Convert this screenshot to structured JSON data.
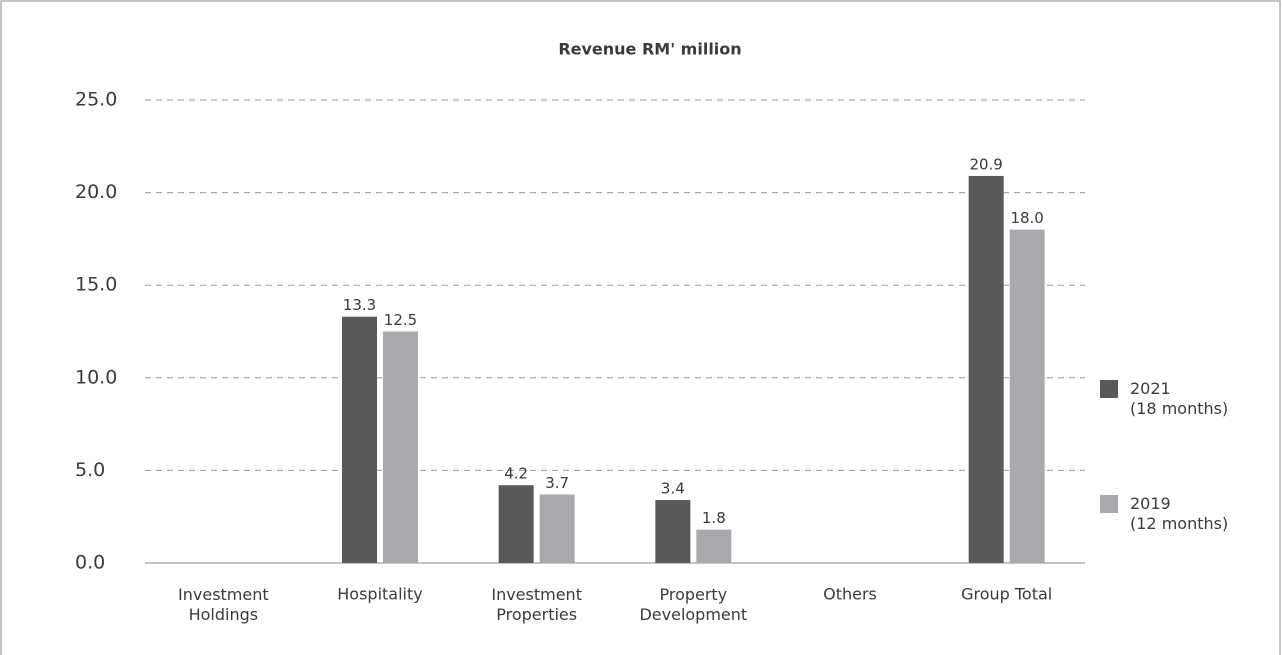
{
  "chart_data": {
    "type": "bar",
    "title": "Revenue RM' million",
    "categories": [
      "Investment\nHoldings",
      "Hospitality",
      "Investment\nProperties",
      "Property\nDevelopment",
      "Others",
      "Group Total"
    ],
    "series": [
      {
        "name": "2021\n(18 months)",
        "color": "#58595b",
        "values": [
          null,
          13.3,
          4.2,
          3.4,
          null,
          20.9
        ]
      },
      {
        "name": "2019\n(12 months)",
        "color": "#a7a9ac",
        "values": [
          null,
          12.5,
          3.7,
          1.8,
          null,
          18.0
        ],
        "value_labels": [
          null,
          "12.5",
          "3.7",
          "1.8",
          null,
          "18.0"
        ]
      }
    ],
    "ylim": [
      0,
      25
    ],
    "yticks": [
      {
        "value": 0,
        "label": "0.0"
      },
      {
        "value": 5,
        "label": "5.0"
      },
      {
        "value": 10,
        "label": "10.0"
      },
      {
        "value": 15,
        "label": "15.0"
      },
      {
        "value": 20,
        "label": "20.0"
      },
      {
        "value": 25,
        "label": "25.0"
      }
    ],
    "grid": true,
    "legend": "right"
  }
}
